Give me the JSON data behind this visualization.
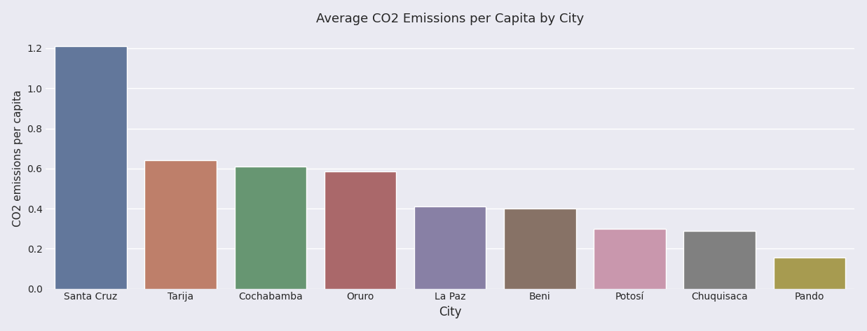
{
  "categories": [
    "Santa Cruz",
    "Tarija",
    "Cochabamba",
    "Oruro",
    "La Paz",
    "Beni",
    "Potosí",
    "Chuquisaca",
    "Pando"
  ],
  "values": [
    1.21,
    0.64,
    0.61,
    0.585,
    0.41,
    0.4,
    0.3,
    0.29,
    0.155
  ],
  "bar_colors": [
    "#5975a4",
    "#cc785c",
    "#5f9e6e",
    "#b55d60",
    "#857aab",
    "#8c7060",
    "#d18fac",
    "#808080",
    "#b5a642"
  ],
  "title": "Average CO2 Emissions per Capita by City",
  "xlabel": "City",
  "ylabel": "CO2 emissions per capita",
  "background_color": "#eaeaf2",
  "axes_background_color": "#eaeaf2",
  "figsize": [
    12.37,
    4.73
  ],
  "dpi": 100
}
